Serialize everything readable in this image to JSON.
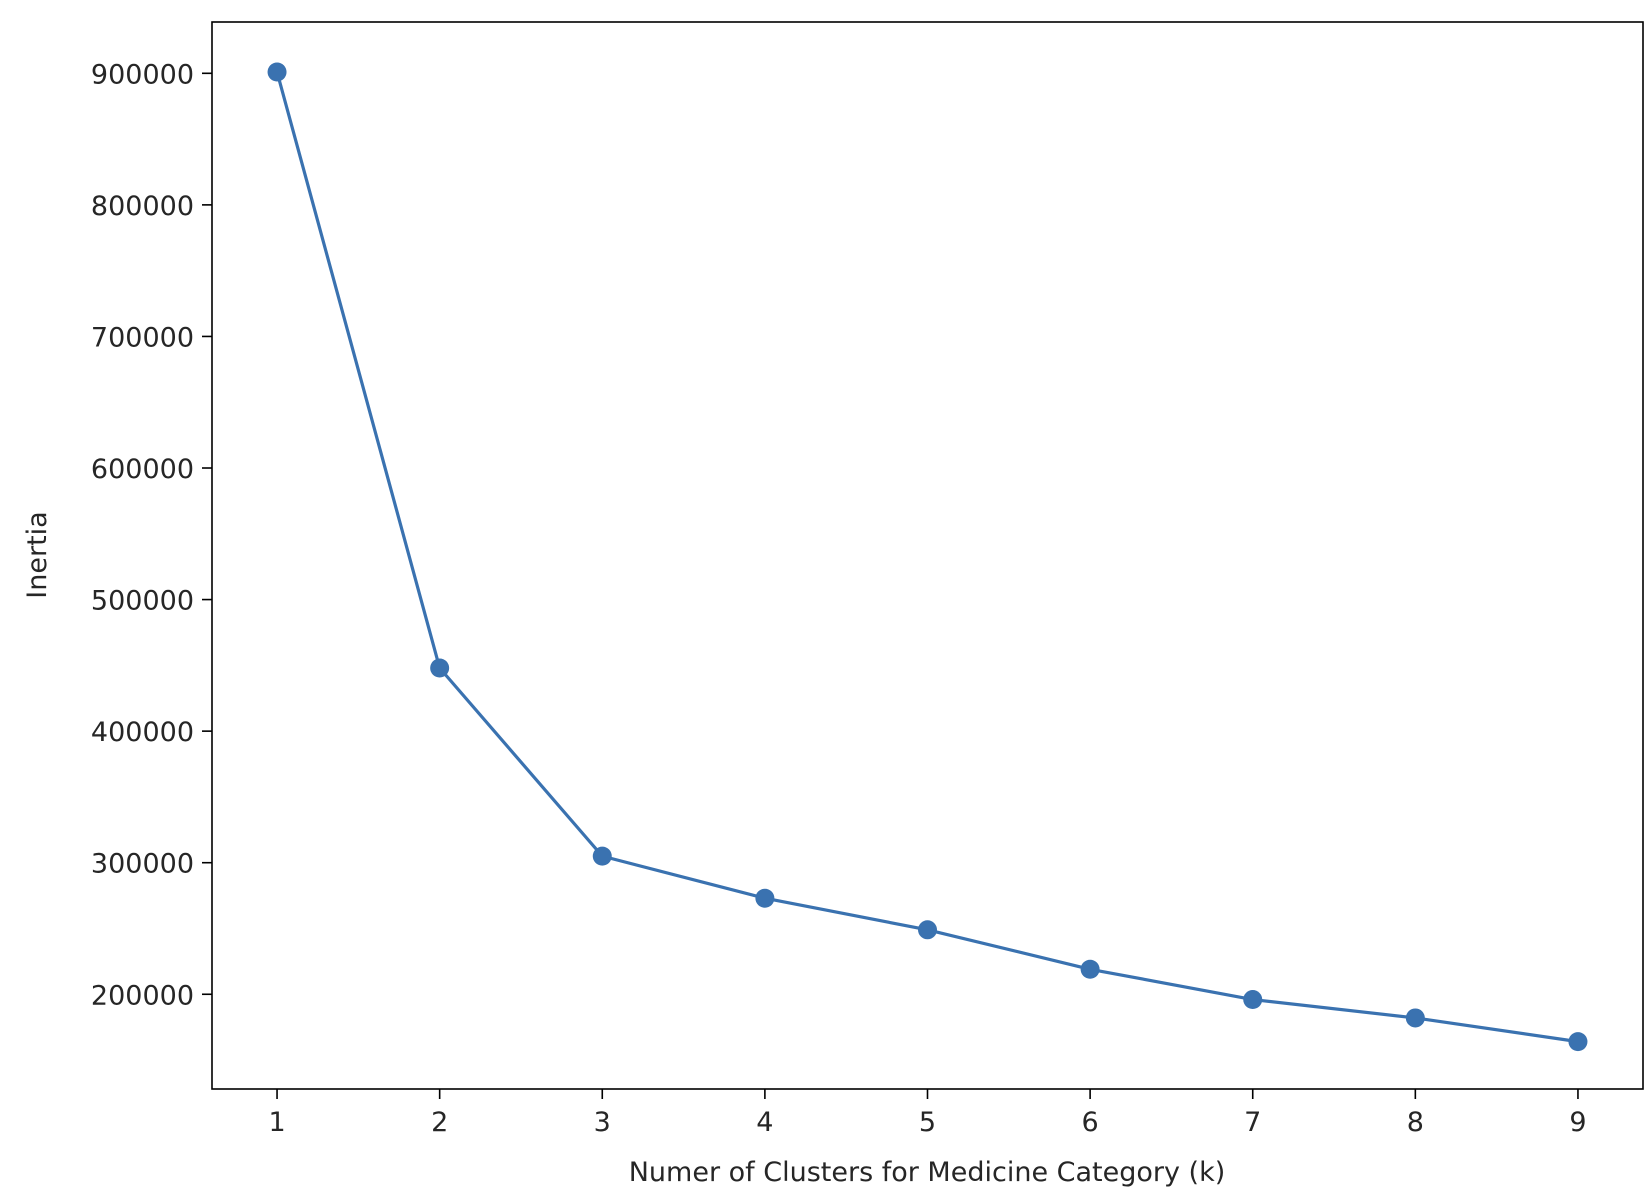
{
  "chart_data": {
    "type": "line",
    "title": "",
    "xlabel": "Numer of Clusters for Medicine Category (k)",
    "ylabel": "Inertia",
    "x": [
      1,
      2,
      3,
      4,
      5,
      6,
      7,
      8,
      9
    ],
    "series": [
      {
        "values": [
          901000,
          448000,
          305000,
          273000,
          249000,
          219000,
          196000,
          182000,
          164000
        ],
        "color": "#3a72b0",
        "marker": "circle"
      }
    ],
    "xticks": [
      "1",
      "2",
      "3",
      "4",
      "5",
      "6",
      "7",
      "8",
      "9"
    ],
    "yticks": [
      "200000",
      "300000",
      "400000",
      "500000",
      "600000",
      "700000",
      "800000",
      "900000"
    ],
    "xlim": [
      0.6,
      9.4
    ],
    "ylim": [
      128000,
      939000
    ],
    "grid": false,
    "legend": false
  }
}
